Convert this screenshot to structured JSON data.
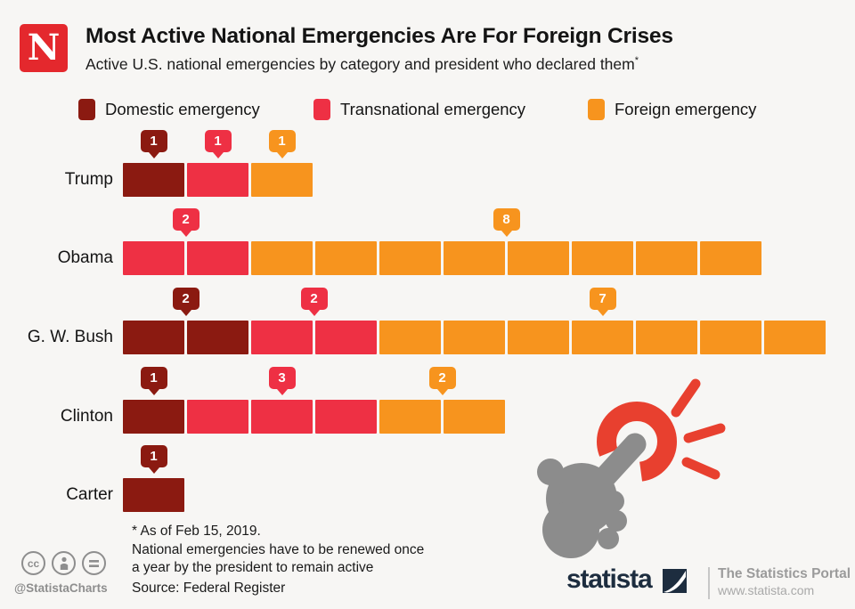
{
  "background_color": "#f7f6f4",
  "header": {
    "logo_letter": "N",
    "logo_color": "#e4282d",
    "title": "Most Active National Emergencies Are For Foreign Crises",
    "subtitle": "Active U.S. national emergencies by category and president who declared them",
    "footnote_marker": "*"
  },
  "legend": {
    "items": [
      {
        "label": "Domestic emergency",
        "color": "#8b1a11"
      },
      {
        "label": "Transnational emergency",
        "color": "#ee3044"
      },
      {
        "label": "Foreign emergency",
        "color": "#f7941e"
      }
    ]
  },
  "chart_data": {
    "type": "bar",
    "subtype": "stacked-unit-squares",
    "orientation": "horizontal",
    "note": "each square represents one active national emergency; counts shown in callout badges",
    "categories": [
      "Trump",
      "Obama",
      "G. W. Bush",
      "Clinton",
      "Carter"
    ],
    "series": [
      {
        "name": "Domestic emergency",
        "color": "#8b1a11",
        "values": [
          1,
          0,
          2,
          1,
          1
        ]
      },
      {
        "name": "Transnational emergency",
        "color": "#ee3044",
        "values": [
          1,
          2,
          2,
          3,
          0
        ]
      },
      {
        "name": "Foreign emergency",
        "color": "#f7941e",
        "values": [
          1,
          8,
          7,
          2,
          0
        ]
      }
    ],
    "totals": [
      3,
      10,
      11,
      6,
      1
    ],
    "value_labels_shown": true,
    "legend_position": "top",
    "grid": false
  },
  "footnotes": {
    "line1": "* As of Feb 15, 2019.",
    "line2": "National emergencies have to be renewed once",
    "line3": "a year by the president to remain active",
    "source": "Source: Federal Register"
  },
  "footer": {
    "cc_icons": [
      "cc-icon",
      "attribution-person-icon",
      "no-derivatives-equals-icon"
    ],
    "cc_handle": "@StatistaCharts",
    "brand": "statista",
    "tagline": "The Statistics Portal",
    "website": "www.statista.com"
  },
  "colors": {
    "accent_red": "#e8402f",
    "hand_gray": "#8c8c8c",
    "brand_navy": "#1d2d3f"
  }
}
